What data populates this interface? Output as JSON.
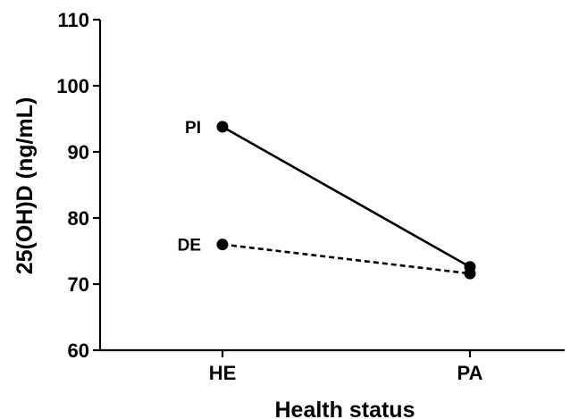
{
  "chart_data": {
    "type": "line",
    "title": "",
    "xlabel": "Health status",
    "ylabel": "25(OH)D (ng/mL)",
    "categories": [
      "HE",
      "PA"
    ],
    "ylim": [
      60,
      110
    ],
    "yticks": [
      60,
      70,
      80,
      90,
      100,
      110
    ],
    "grid": false,
    "legend": "none",
    "series": [
      {
        "name": "PI",
        "values": [
          93.8,
          72.6
        ],
        "line_style": "solid",
        "color": "#000000"
      },
      {
        "name": "DE",
        "values": [
          76.0,
          71.6
        ],
        "line_style": "dashed",
        "color": "#000000"
      }
    ]
  }
}
